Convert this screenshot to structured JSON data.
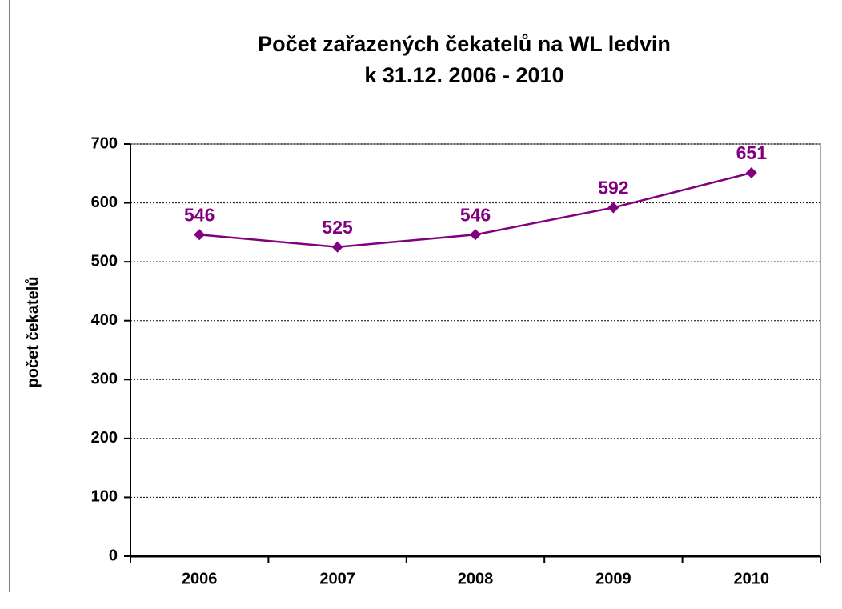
{
  "chart_data": {
    "type": "line",
    "title": [
      "Počet zařazených čekatelů na WL ledvin",
      "k 31.12. 2006 - 2010"
    ],
    "y_label": "počet čekatelů",
    "categories": [
      "2006",
      "2007",
      "2008",
      "2009",
      "2010"
    ],
    "series": [
      {
        "name": "počet čekatelů",
        "color": "#800080",
        "values": [
          546,
          525,
          546,
          592,
          651
        ]
      }
    ],
    "ylim": [
      0,
      700
    ],
    "yticks": [
      0,
      100,
      200,
      300,
      400,
      500,
      600,
      700
    ],
    "grid": true,
    "data_labels": true
  }
}
